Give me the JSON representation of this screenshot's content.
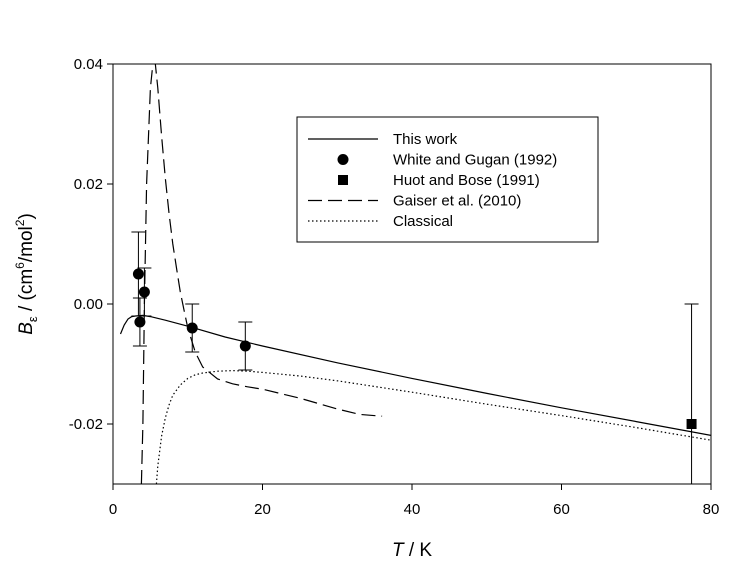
{
  "chart_data": {
    "type": "line",
    "xlabel": {
      "italic": "T",
      "rest": " / K"
    },
    "ylabel": {
      "italic": "B",
      "sub": "ε",
      "rest": " / (cm",
      "sup1": "6",
      "mid": "/mol",
      "sup2": "2",
      "end": ")"
    },
    "xlim": [
      0,
      80
    ],
    "ylim": [
      -0.03,
      0.04
    ],
    "xticks": [
      0,
      20,
      40,
      60,
      80
    ],
    "xtick_labels": [
      "0",
      "20",
      "40",
      "60",
      "80"
    ],
    "yticks": [
      -0.02,
      0.0,
      0.02,
      0.04
    ],
    "ytick_labels": [
      "-0.02",
      "0.00",
      "0.02",
      "0.04"
    ],
    "grid": false,
    "legend_position": "upper-middle",
    "legend": [
      {
        "label": "This work",
        "style": "solid"
      },
      {
        "label": "White and Gugan (1992)",
        "style": "circle"
      },
      {
        "label": "Huot and Bose (1991)",
        "style": "square"
      },
      {
        "label": "Gaiser et al. (2010)",
        "style": "dashed"
      },
      {
        "label": "Classical",
        "style": "dotted"
      }
    ],
    "series": [
      {
        "name": "This work",
        "style": "solid",
        "x": [
          1.0,
          1.5,
          2.0,
          2.5,
          3.0,
          4.0,
          5.0,
          7.0,
          10.0,
          15.0,
          20.0,
          30.0,
          40.0,
          50.0,
          60.0,
          70.0,
          80.0
        ],
        "y": [
          -0.005,
          -0.0035,
          -0.0025,
          -0.0021,
          -0.002,
          -0.0019,
          -0.0021,
          -0.0027,
          -0.0037,
          -0.0055,
          -0.007,
          -0.0098,
          -0.0124,
          -0.0149,
          -0.0173,
          -0.0196,
          -0.0219
        ]
      },
      {
        "name": "Gaiser et al. (2010)",
        "style": "dashed",
        "x": [
          3.8,
          4.0,
          4.2,
          4.5,
          5.0,
          5.5,
          6.0,
          6.5,
          7.0,
          7.5,
          8.0,
          8.5,
          9.0,
          9.5,
          10.0,
          11.0,
          12.0,
          14.0,
          16.0,
          18.0,
          20.0,
          25.0,
          30.0,
          33.0,
          36.0
        ],
        "y": [
          -0.03,
          -0.02,
          0.0,
          0.02,
          0.036,
          0.042,
          0.036,
          0.028,
          0.021,
          0.015,
          0.01,
          0.006,
          0.002,
          -0.001,
          -0.004,
          -0.008,
          -0.0105,
          -0.0125,
          -0.0133,
          -0.0138,
          -0.0142,
          -0.0157,
          -0.0175,
          -0.0184,
          -0.0187
        ]
      },
      {
        "name": "Classical",
        "style": "dotted",
        "x": [
          5.8,
          6.0,
          6.5,
          7.0,
          7.5,
          8.0,
          9.0,
          10.0,
          11.0,
          12.0,
          14.0,
          16.0,
          18.0,
          20.0,
          25.0,
          30.0,
          40.0,
          50.0,
          60.0,
          70.0,
          80.0
        ],
        "y": [
          -0.03,
          -0.027,
          -0.022,
          -0.019,
          -0.0168,
          -0.0152,
          -0.0135,
          -0.0124,
          -0.0118,
          -0.0115,
          -0.0112,
          -0.0111,
          -0.0112,
          -0.0114,
          -0.012,
          -0.0128,
          -0.0147,
          -0.0167,
          -0.0186,
          -0.0206,
          -0.0227
        ]
      }
    ],
    "points": [
      {
        "name": "White and Gugan (1992)",
        "marker": "circle",
        "x": [
          3.4,
          3.6,
          4.2,
          10.6,
          17.7
        ],
        "y": [
          0.005,
          -0.003,
          0.002,
          -0.004,
          -0.007
        ],
        "err": [
          0.007,
          0.004,
          0.004,
          0.004,
          0.004
        ]
      },
      {
        "name": "Huot and Bose (1991)",
        "marker": "square",
        "x": [
          77.4
        ],
        "y": [
          -0.02
        ],
        "err": [
          0.02
        ]
      }
    ]
  }
}
